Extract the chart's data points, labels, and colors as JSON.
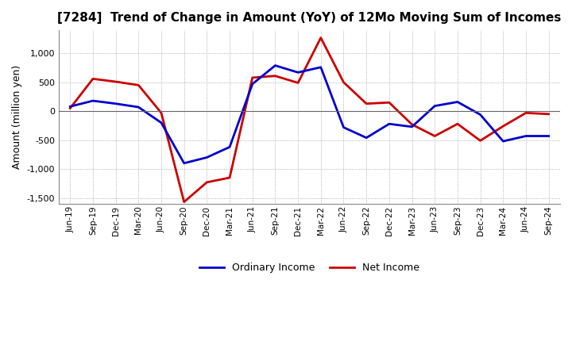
{
  "title": "[7284]  Trend of Change in Amount (YoY) of 12Mo Moving Sum of Incomes",
  "ylabel": "Amount (million yen)",
  "x_labels": [
    "Jun-19",
    "Sep-19",
    "Dec-19",
    "Mar-20",
    "Jun-20",
    "Sep-20",
    "Dec-20",
    "Mar-21",
    "Jun-21",
    "Sep-21",
    "Dec-21",
    "Mar-22",
    "Jun-22",
    "Sep-22",
    "Dec-22",
    "Mar-23",
    "Jun-23",
    "Sep-23",
    "Dec-23",
    "Mar-24",
    "Jun-24",
    "Sep-24"
  ],
  "ordinary_income": [
    80,
    180,
    130,
    70,
    -200,
    -900,
    -800,
    -620,
    470,
    790,
    670,
    760,
    -280,
    -460,
    -220,
    -270,
    90,
    160,
    -60,
    -520,
    -430,
    -430
  ],
  "net_income": [
    50,
    560,
    510,
    450,
    -30,
    -1570,
    -1230,
    -1150,
    580,
    610,
    490,
    1270,
    500,
    130,
    150,
    -230,
    -430,
    -220,
    -510,
    -260,
    -30,
    -50
  ],
  "ordinary_color": "#0000cc",
  "net_color": "#cc0000",
  "ylim": [
    -1600,
    1400
  ],
  "yticks": [
    -1500,
    -1000,
    -500,
    0,
    500,
    1000
  ],
  "background_color": "#ffffff",
  "plot_bg_color": "#ffffff",
  "grid_color": "#999999",
  "legend_labels": [
    "Ordinary Income",
    "Net Income"
  ]
}
